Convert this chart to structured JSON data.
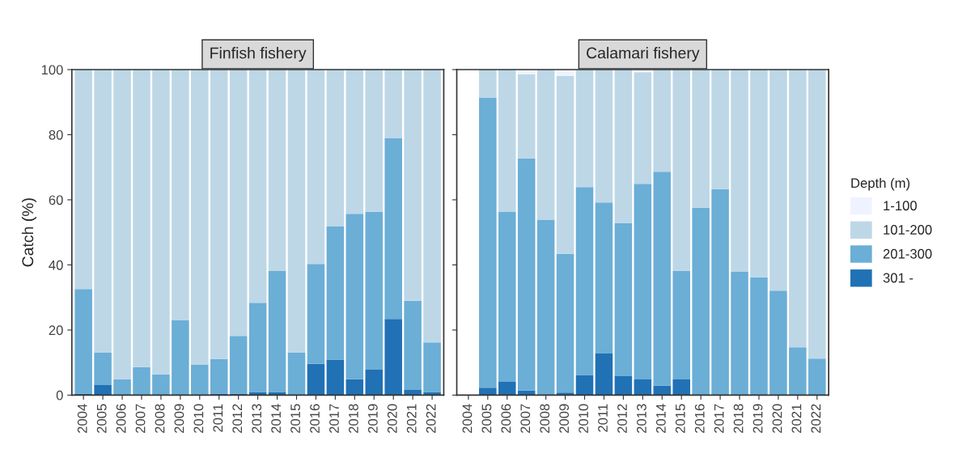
{
  "chart_data": [
    {
      "type": "bar",
      "title": "Finfish fishery",
      "ylabel": "Catch (%)",
      "stacked": true,
      "grid": false,
      "legend": "right",
      "legend_title": "Depth (m)",
      "categories": [
        "2004",
        "2005",
        "2006",
        "2007",
        "2008",
        "2009",
        "2010",
        "2011",
        "2012",
        "2013",
        "2014",
        "2015",
        "2016",
        "2017",
        "2018",
        "2019",
        "2020",
        "2021",
        "2022"
      ],
      "ylim": [
        0,
        100
      ],
      "yticks": [
        0,
        20,
        40,
        60,
        80,
        100
      ],
      "series": [
        {
          "name": "301 -",
          "color": "#2171b5",
          "values": [
            0.5,
            3.1,
            0,
            0,
            0,
            0,
            0,
            0.5,
            0.5,
            1.0,
            1.0,
            0,
            9.6,
            10.9,
            4.9,
            7.8,
            23.4,
            1.6,
            1.0
          ]
        },
        {
          "name": "201-300",
          "color": "#6baed6",
          "values": [
            32.1,
            9.9,
            4.9,
            8.6,
            6.4,
            23.1,
            9.4,
            10.6,
            17.7,
            27.4,
            37.1,
            13.0,
            30.7,
            41.0,
            50.8,
            48.5,
            55.6,
            27.4,
            15.2
          ]
        },
        {
          "name": "101-200",
          "color": "#bdd7e7",
          "values": [
            67.4,
            87.0,
            95.1,
            91.4,
            93.6,
            76.9,
            90.6,
            88.9,
            81.8,
            71.6,
            61.9,
            87.0,
            59.7,
            48.1,
            44.3,
            43.7,
            21.0,
            71.0,
            83.8
          ]
        },
        {
          "name": "1-100",
          "color": "#eff3ff",
          "values": [
            0,
            0,
            0,
            0,
            0,
            0,
            0,
            0,
            0,
            0,
            0,
            0,
            0,
            0,
            0,
            0,
            0,
            0,
            0
          ]
        }
      ]
    },
    {
      "type": "bar",
      "title": "Calamari fishery",
      "stacked": true,
      "grid": false,
      "tick_labels": "x",
      "categories": [
        "2004",
        "2005",
        "2006",
        "2007",
        "2008",
        "2009",
        "2010",
        "2011",
        "2012",
        "2013",
        "2014",
        "2015",
        "2016",
        "2017",
        "2018",
        "2019",
        "2020",
        "2021",
        "2022"
      ],
      "ylim": [
        0,
        100
      ],
      "yticks": [
        0,
        20,
        40,
        60,
        80,
        100
      ],
      "series": [
        {
          "color": "#2171b5",
          "values": [
            null,
            2.3,
            4.1,
            1.4,
            0,
            0.8,
            6.2,
            12.8,
            5.8,
            4.8,
            2.9,
            4.8,
            0,
            0,
            0,
            0,
            0,
            0,
            0
          ]
        },
        {
          "color": "#6baed6",
          "values": [
            null,
            89.0,
            52.3,
            71.3,
            53.8,
            42.6,
            57.7,
            46.4,
            47.0,
            60.1,
            65.7,
            33.4,
            57.6,
            63.3,
            37.9,
            36.2,
            32.1,
            14.7,
            11.2
          ]
        },
        {
          "color": "#bdd7e7",
          "values": [
            null,
            8.7,
            43.6,
            25.9,
            46.2,
            54.6,
            36.1,
            40.8,
            47.2,
            34.3,
            31.4,
            61.8,
            42.4,
            36.7,
            62.1,
            63.8,
            67.9,
            85.3,
            88.8
          ]
        },
        {
          "color": "#eff3ff",
          "values": [
            null,
            0,
            0,
            1.4,
            0,
            2.0,
            0,
            0,
            0,
            0.8,
            0,
            0,
            0,
            0,
            0,
            0,
            0,
            0,
            0
          ]
        }
      ]
    }
  ]
}
